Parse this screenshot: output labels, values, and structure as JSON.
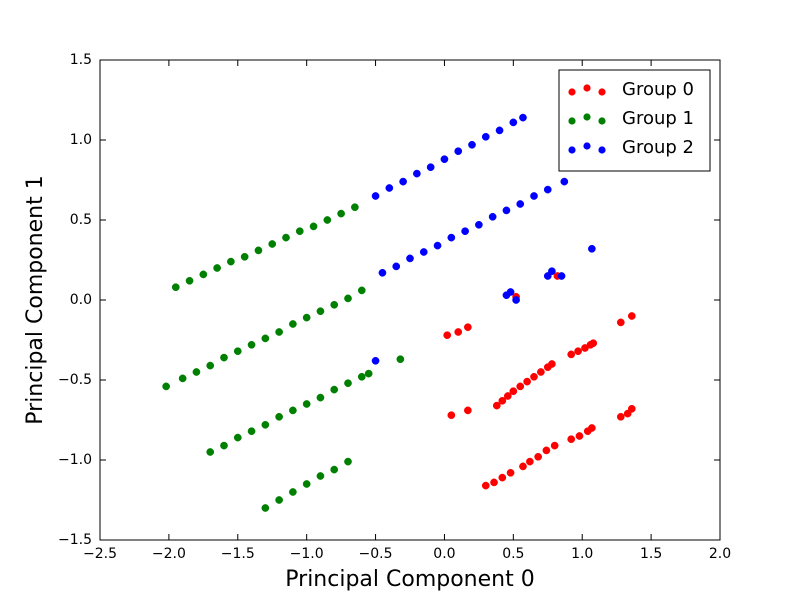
{
  "chart_data": {
    "type": "scatter",
    "xlabel": "Principal Component 0",
    "ylabel": "Principal Component 1",
    "xlim": [
      -2.5,
      2.0
    ],
    "ylim": [
      -1.5,
      1.5
    ],
    "xticks": [
      {
        "value": -2.5,
        "label": "−2.5"
      },
      {
        "value": -2.0,
        "label": "−2.0"
      },
      {
        "value": -1.5,
        "label": "−1.5"
      },
      {
        "value": -1.0,
        "label": "−1.0"
      },
      {
        "value": -0.5,
        "label": "−0.5"
      },
      {
        "value": 0,
        "label": "0.0"
      },
      0.5,
      {
        "value": 1,
        "label": "1.0"
      },
      1.5,
      {
        "value": 2,
        "label": "2.0"
      }
    ],
    "yticks": [
      {
        "value": -1.5,
        "label": "−1.5"
      },
      {
        "value": -1.0,
        "label": "−1.0"
      },
      {
        "value": -0.5,
        "label": "−0.5"
      },
      {
        "value": 0,
        "label": "0.0"
      },
      0.5,
      {
        "value": 1,
        "label": "1.0"
      },
      1.5
    ],
    "legend": "upper right",
    "series": [
      {
        "name": "Group 0",
        "color": "#ff0000",
        "x": [
          0.02,
          0.1,
          0.17,
          0.05,
          0.17,
          0.38,
          0.42,
          0.46,
          0.5,
          0.55,
          0.6,
          0.65,
          0.7,
          0.75,
          0.78,
          0.92,
          0.97,
          1.02,
          1.06,
          1.08,
          1.28,
          1.36,
          0.3,
          0.36,
          0.42,
          0.48,
          0.57,
          0.62,
          0.68,
          0.74,
          0.8,
          0.92,
          0.98,
          1.04,
          1.07,
          1.28,
          1.33,
          1.36,
          0.52,
          0.82
        ],
        "y": [
          -0.22,
          -0.2,
          -0.17,
          -0.72,
          -0.69,
          -0.66,
          -0.63,
          -0.6,
          -0.57,
          -0.54,
          -0.51,
          -0.48,
          -0.45,
          -0.42,
          -0.4,
          -0.34,
          -0.32,
          -0.3,
          -0.28,
          -0.27,
          -0.14,
          -0.1,
          -1.16,
          -1.14,
          -1.11,
          -1.08,
          -1.04,
          -1.01,
          -0.98,
          -0.94,
          -0.91,
          -0.87,
          -0.85,
          -0.82,
          -0.8,
          -0.73,
          -0.71,
          -0.68,
          0.02,
          0.15
        ]
      },
      {
        "name": "Group 1",
        "color": "#008000",
        "x": [
          -1.95,
          -1.85,
          -1.75,
          -1.65,
          -1.55,
          -1.45,
          -1.35,
          -1.25,
          -1.15,
          -1.05,
          -0.95,
          -0.85,
          -0.75,
          -0.65,
          -2.02,
          -1.9,
          -1.8,
          -1.7,
          -1.6,
          -1.5,
          -1.4,
          -1.3,
          -1.2,
          -1.1,
          -1.0,
          -0.9,
          -0.8,
          -0.7,
          -0.6,
          -1.7,
          -1.6,
          -1.5,
          -1.4,
          -1.3,
          -1.2,
          -1.1,
          -1.0,
          -0.9,
          -0.8,
          -0.7,
          -0.6,
          -0.55,
          -0.32,
          -1.3,
          -1.2,
          -1.1,
          -1.0,
          -0.9,
          -0.8,
          -0.7
        ],
        "y": [
          0.08,
          0.12,
          0.16,
          0.2,
          0.24,
          0.27,
          0.31,
          0.35,
          0.39,
          0.43,
          0.46,
          0.5,
          0.54,
          0.58,
          -0.54,
          -0.49,
          -0.45,
          -0.41,
          -0.36,
          -0.32,
          -0.28,
          -0.24,
          -0.2,
          -0.15,
          -0.11,
          -0.07,
          -0.03,
          0.01,
          0.06,
          -0.95,
          -0.91,
          -0.86,
          -0.82,
          -0.78,
          -0.73,
          -0.69,
          -0.65,
          -0.61,
          -0.56,
          -0.52,
          -0.48,
          -0.46,
          -0.37,
          -1.3,
          -1.25,
          -1.2,
          -1.15,
          -1.1,
          -1.06,
          -1.01
        ]
      },
      {
        "name": "Group 2",
        "color": "#0000ff",
        "x": [
          -0.5,
          -0.4,
          -0.3,
          -0.2,
          -0.1,
          0.0,
          0.1,
          0.2,
          0.3,
          0.4,
          0.5,
          0.57,
          -0.45,
          -0.35,
          -0.25,
          -0.15,
          -0.05,
          0.05,
          0.15,
          0.25,
          0.35,
          0.45,
          0.55,
          0.65,
          0.75,
          0.87,
          -0.5,
          0.45,
          0.48,
          0.52,
          0.75,
          0.78,
          0.85,
          1.07
        ],
        "y": [
          0.65,
          0.7,
          0.74,
          0.79,
          0.83,
          0.88,
          0.93,
          0.97,
          1.02,
          1.06,
          1.11,
          1.14,
          0.17,
          0.21,
          0.26,
          0.3,
          0.34,
          0.39,
          0.43,
          0.47,
          0.52,
          0.56,
          0.6,
          0.65,
          0.69,
          0.74,
          -0.38,
          0.03,
          0.05,
          0.0,
          0.15,
          0.18,
          0.15,
          0.32
        ]
      }
    ]
  }
}
